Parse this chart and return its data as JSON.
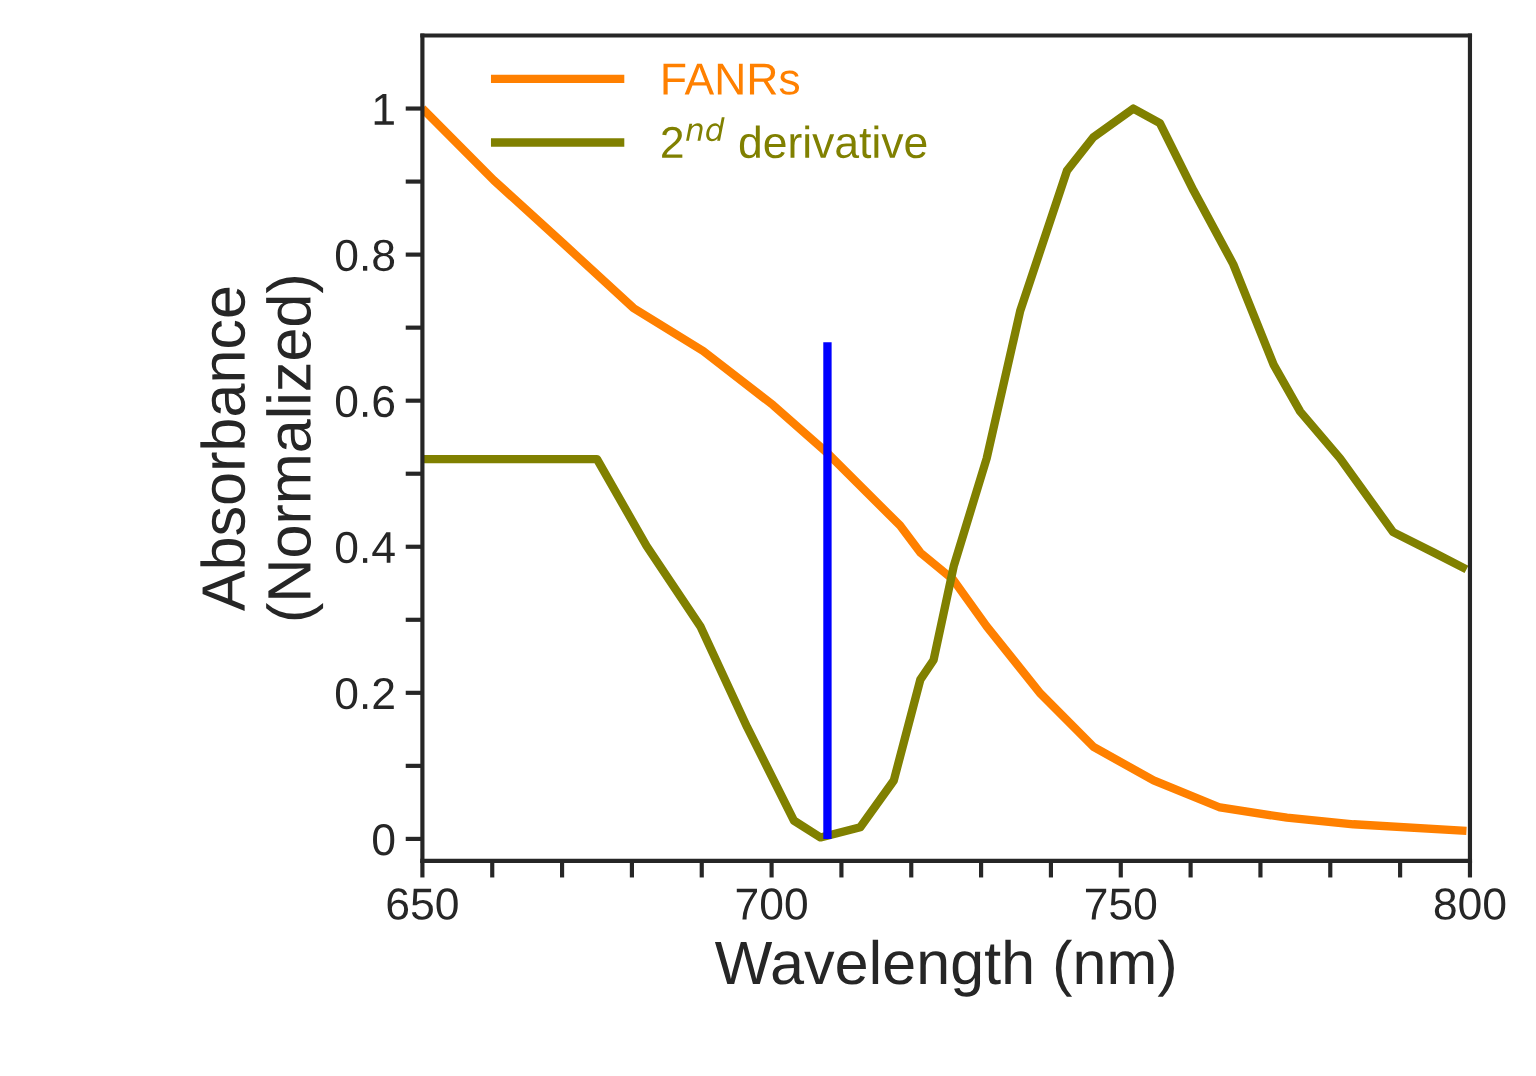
{
  "chart_data": {
    "type": "line",
    "xlabel": "Wavelength (nm)",
    "ylabel": "Absorbance\n(Normalized)",
    "xlim": [
      650,
      800
    ],
    "ylim": [
      -0.03,
      1.1
    ],
    "xticks": [
      650,
      {
        "value": 660,
        "label": null
      },
      {
        "value": 670,
        "label": null
      },
      {
        "value": 680,
        "label": null
      },
      {
        "value": 690,
        "label": null
      },
      700,
      {
        "value": 710,
        "label": null
      },
      {
        "value": 720,
        "label": null
      },
      {
        "value": 730,
        "label": null
      },
      {
        "value": 740,
        "label": null
      },
      750,
      {
        "value": 760,
        "label": null
      },
      {
        "value": 770,
        "label": null
      },
      {
        "value": 780,
        "label": null
      },
      {
        "value": 790,
        "label": null
      },
      800
    ],
    "yticks": [
      0,
      {
        "value": 0.1,
        "label": null
      },
      0.2,
      {
        "value": 0.3,
        "label": null
      },
      0.4,
      {
        "value": 0.5,
        "label": null
      },
      0.6,
      {
        "value": 0.7,
        "label": null
      },
      0.8,
      {
        "value": 0.9,
        "label": null
      },
      1
    ],
    "grid": false,
    "legend": "top left",
    "marker": "none",
    "line_style": "solid",
    "series": [
      {
        "name": "FANRs",
        "color": "#ff8000",
        "x": [
          650,
          660.2,
          670.2,
          680.2,
          690.2,
          700.2,
          707.8,
          718.4,
          721.3,
          726,
          730.8,
          738.5,
          746.1,
          754.7,
          764.2,
          773.8,
          783.3,
          799.5
        ],
        "values": [
          1.0,
          0.902,
          0.815,
          0.727,
          0.668,
          0.594,
          0.53,
          0.429,
          0.392,
          0.355,
          0.291,
          0.199,
          0.126,
          0.08,
          0.043,
          0.029,
          0.02,
          0.011
        ]
      },
      {
        "name": "2$^{nd}$ derivative",
        "color": "#808000",
        "x": [
          650,
          675,
          682.1,
          689.8,
          696.5,
          703.2,
          707,
          712.7,
          717.5,
          721.3,
          723.2,
          726.1,
          730.8,
          735.6,
          742.3,
          746.1,
          751.8,
          755.6,
          760.4,
          766.1,
          771.9,
          775.7,
          781.4,
          789,
          794.8,
          799.5
        ],
        "values": [
          0.52,
          0.52,
          0.401,
          0.291,
          0.153,
          0.025,
          0.002,
          0.016,
          0.08,
          0.218,
          0.245,
          0.374,
          0.521,
          0.723,
          0.915,
          0.961,
          1.0,
          0.98,
          0.888,
          0.787,
          0.649,
          0.585,
          0.521,
          0.42,
          0.392,
          0.369
        ]
      },
      {
        "color": "#0000ff",
        "x": [
          708,
          708
        ],
        "values": [
          0,
          0.68
        ]
      }
    ]
  }
}
